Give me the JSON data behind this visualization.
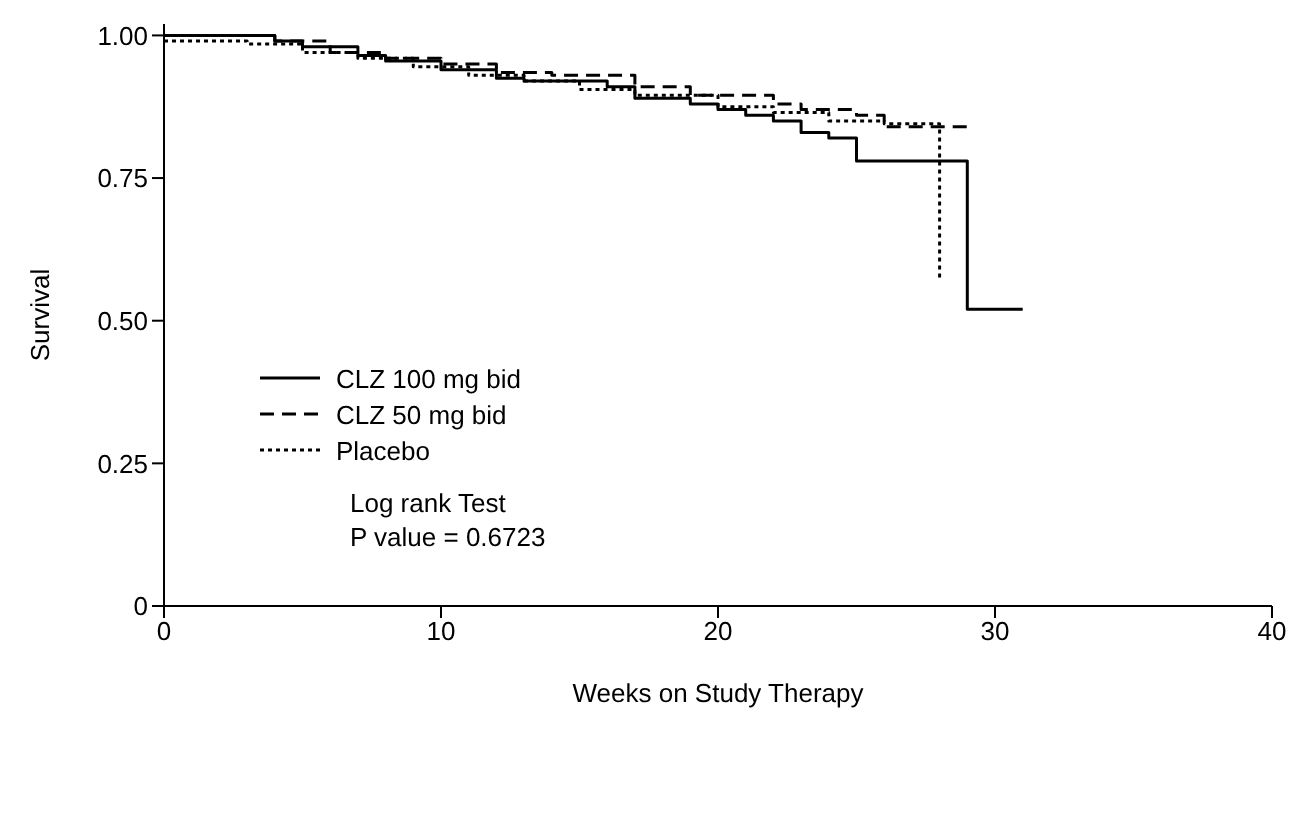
{
  "chart_data": {
    "type": "step",
    "xlabel": "Weeks on Study Therapy",
    "ylabel": "Survival",
    "xlim": [
      0,
      40
    ],
    "xticks": [
      0,
      10,
      20,
      30,
      40
    ],
    "ylim": [
      0,
      1.02
    ],
    "yticks": [
      0,
      0.25,
      {
        "value": 0.5,
        "label": "0.50"
      },
      0.75,
      {
        "value": 1,
        "label": "1.00"
      }
    ],
    "marker": "none",
    "legend": "left",
    "annotations": [
      "Log rank Test",
      "P value = 0.6723"
    ],
    "series": [
      {
        "name": "CLZ 100 mg bid",
        "color": "#000000",
        "line_style": "solid",
        "x": [
          0,
          4,
          5,
          7,
          8,
          10,
          12,
          13,
          16,
          17,
          19,
          20,
          21,
          22,
          23,
          24,
          25,
          29,
          31
        ],
        "values": [
          1.0,
          0.99,
          0.98,
          0.965,
          0.955,
          0.94,
          0.925,
          0.92,
          0.91,
          0.89,
          0.88,
          0.87,
          0.86,
          0.85,
          0.83,
          0.82,
          0.78,
          0.52,
          0.52
        ]
      },
      {
        "name": "CLZ 50 mg bid",
        "color": "#000000",
        "line_style": "dashed",
        "x": [
          0,
          4,
          6,
          8,
          10,
          12,
          14,
          17,
          19,
          22,
          23,
          25,
          26,
          29
        ],
        "values": [
          1.0,
          0.99,
          0.97,
          0.96,
          0.95,
          0.935,
          0.93,
          0.91,
          0.895,
          0.88,
          0.87,
          0.86,
          0.84,
          0.84
        ]
      },
      {
        "name": "Placebo",
        "color": "#000000",
        "line_style": "dotted",
        "x": [
          0,
          3,
          5,
          7,
          9,
          11,
          13,
          15,
          17,
          20,
          22,
          24,
          26,
          28
        ],
        "values": [
          0.99,
          0.985,
          0.97,
          0.96,
          0.945,
          0.93,
          0.92,
          0.905,
          0.895,
          0.875,
          0.865,
          0.85,
          0.845,
          0.57
        ]
      }
    ]
  }
}
